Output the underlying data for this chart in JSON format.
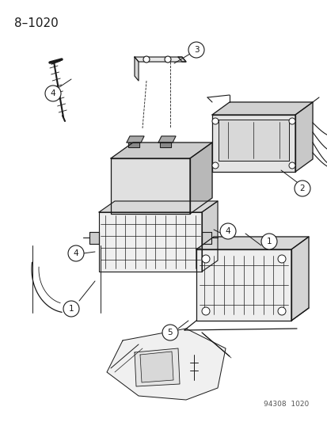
{
  "title": "8–1020",
  "footer": "94308  1020",
  "bg": "#ffffff",
  "lc": "#1a1a1a",
  "fig_w": 4.14,
  "fig_h": 5.33,
  "dpi": 100
}
